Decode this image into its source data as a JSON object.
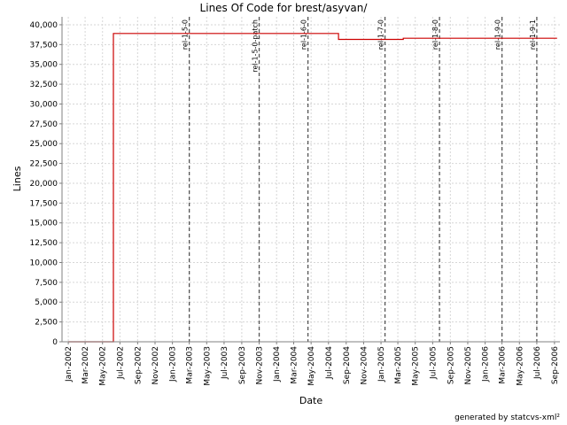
{
  "chart_data": {
    "type": "line",
    "title": "Lines Of Code for brest/asyvan/",
    "xlabel": "Date",
    "ylabel": "Lines",
    "footer": "generated by statcvs-xml²",
    "grid": true,
    "line_color": "#cc0000",
    "y_range": [
      0,
      41000
    ],
    "y_ticks": [
      0,
      2500,
      5000,
      7500,
      10000,
      12500,
      15000,
      17500,
      20000,
      22500,
      25000,
      27500,
      30000,
      32500,
      35000,
      37500,
      40000
    ],
    "y_tick_labels": [
      "0",
      "2,500",
      "5,000",
      "7,500",
      "10,000",
      "12,500",
      "15,000",
      "17,500",
      "20,000",
      "22,500",
      "25,000",
      "27,500",
      "30,000",
      "32,500",
      "35,000",
      "37,500",
      "40,000"
    ],
    "x_range": [
      "2001-12-10",
      "2006-09-20"
    ],
    "x_ticks": [
      "2002-01-01",
      "2002-03-01",
      "2002-05-01",
      "2002-07-01",
      "2002-09-01",
      "2002-11-01",
      "2003-01-01",
      "2003-03-01",
      "2003-05-01",
      "2003-07-01",
      "2003-09-01",
      "2003-11-01",
      "2004-01-01",
      "2004-03-01",
      "2004-05-01",
      "2004-07-01",
      "2004-09-01",
      "2004-11-01",
      "2005-01-01",
      "2005-03-01",
      "2005-05-01",
      "2005-07-01",
      "2005-09-01",
      "2005-11-01",
      "2006-01-01",
      "2006-03-01",
      "2006-05-01",
      "2006-07-01",
      "2006-09-01"
    ],
    "x_tick_labels": [
      "Jan-2002",
      "Mar-2002",
      "May-2002",
      "Jul-2002",
      "Sep-2002",
      "Nov-2002",
      "Jan-2003",
      "Mar-2003",
      "May-2003",
      "Jul-2003",
      "Sep-2003",
      "Nov-2003",
      "Jan-2004",
      "Mar-2004",
      "May-2004",
      "Jul-2004",
      "Sep-2004",
      "Nov-2004",
      "Jan-2005",
      "Mar-2005",
      "May-2005",
      "Jul-2005",
      "Sep-2005",
      "Nov-2005",
      "Jan-2006",
      "Mar-2006",
      "May-2006",
      "Jul-2006",
      "Sep-2006"
    ],
    "series": [
      {
        "points": [
          {
            "x": "2002-01-01",
            "y": 0
          },
          {
            "x": "2002-06-08",
            "y": 0
          },
          {
            "x": "2002-06-08",
            "y": 38900
          },
          {
            "x": "2004-08-05",
            "y": 38900
          },
          {
            "x": "2004-08-05",
            "y": 38150
          },
          {
            "x": "2005-03-20",
            "y": 38150
          },
          {
            "x": "2005-03-20",
            "y": 38300
          },
          {
            "x": "2006-09-10",
            "y": 38300
          }
        ]
      }
    ],
    "markers": [
      {
        "date": "2003-03-01",
        "label": "rel-1-5-0"
      },
      {
        "date": "2003-11-01",
        "label": "rel-1-5-0-patch"
      },
      {
        "date": "2004-04-20",
        "label": "rel-1-6-0"
      },
      {
        "date": "2005-01-15",
        "label": "rel-1-7-0"
      },
      {
        "date": "2005-07-25",
        "label": "rel-1-8-0"
      },
      {
        "date": "2006-03-01",
        "label": "rel-1-9-0"
      },
      {
        "date": "2006-07-01",
        "label": "rel-1-9-1"
      }
    ]
  }
}
